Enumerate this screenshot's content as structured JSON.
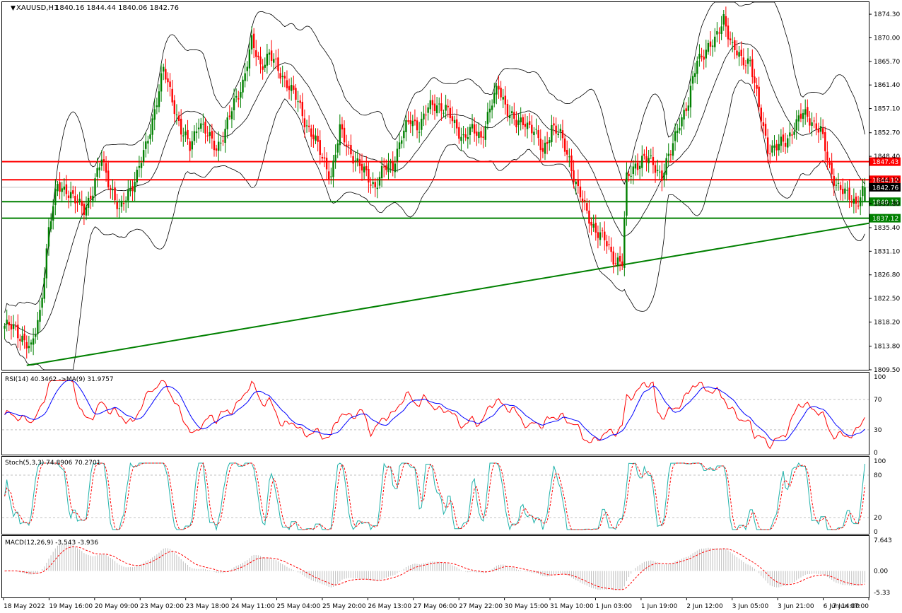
{
  "chart_data": {
    "type": "candlestick",
    "symbol_header": "XAUUSD,H1",
    "ohlc_header": "1840.16 1844.44 1840.06 1842.76",
    "price_ticks": [
      "1874.30",
      "1870.00",
      "1865.70",
      "1861.40",
      "1857.10",
      "1852.70",
      "1848.40",
      "1844.10",
      "1839.80",
      "1835.40",
      "1831.10",
      "1826.80",
      "1822.50",
      "1818.20",
      "1813.80",
      "1809.50"
    ],
    "price_range": [
      1809.5,
      1876.5
    ],
    "horizontal_levels": [
      {
        "label": "1847.43",
        "color": "#ff0000"
      },
      {
        "label": "1844.12",
        "color": "#ff0000"
      },
      {
        "label": "1840.13",
        "color": "#008000"
      },
      {
        "label": "1837.12",
        "color": "#008000"
      }
    ],
    "current_price": {
      "label": "1842.76",
      "value": 1842.76
    },
    "trendline": {
      "start": [
        "18 May 2022",
        1810.3
      ],
      "end": [
        "7 Jun 07:00",
        1836.2
      ],
      "color": "#008000"
    },
    "x_ticks": [
      "18 May 2022",
      "19 May 16:00",
      "20 May 09:00",
      "23 May 02:00",
      "23 May 18:00",
      "24 May 11:00",
      "25 May 04:00",
      "25 May 20:00",
      "26 May 13:00",
      "27 May 06:00",
      "27 May 22:00",
      "30 May 15:00",
      "31 May 10:00",
      "1 Jun 03:00",
      "1 Jun 19:00",
      "2 Jun 12:00",
      "3 Jun 05:00",
      "3 Jun 21:00",
      "6 Jun 14:00",
      "7 Jun 07:00"
    ],
    "close_anchors": [
      [
        0,
        1817.5
      ],
      [
        4,
        1817
      ],
      [
        8,
        1815.5
      ],
      [
        12,
        1813
      ],
      [
        16,
        1820
      ],
      [
        20,
        1835
      ],
      [
        24,
        1843
      ],
      [
        28,
        1842.5
      ],
      [
        32,
        1840
      ],
      [
        36,
        1839
      ],
      [
        40,
        1842
      ],
      [
        44,
        1848
      ],
      [
        48,
        1843
      ],
      [
        52,
        1838
      ],
      [
        56,
        1842
      ],
      [
        60,
        1845
      ],
      [
        64,
        1850
      ],
      [
        68,
        1857
      ],
      [
        72,
        1864
      ],
      [
        76,
        1859
      ],
      [
        80,
        1853
      ],
      [
        84,
        1850
      ],
      [
        88,
        1855
      ],
      [
        92,
        1852
      ],
      [
        96,
        1850
      ],
      [
        100,
        1853
      ],
      [
        104,
        1858
      ],
      [
        108,
        1862
      ],
      [
        112,
        1869
      ],
      [
        116,
        1865
      ],
      [
        120,
        1867
      ],
      [
        124,
        1864
      ],
      [
        128,
        1862
      ],
      [
        132,
        1859
      ],
      [
        136,
        1855
      ],
      [
        140,
        1852
      ],
      [
        144,
        1848
      ],
      [
        148,
        1845
      ],
      [
        152,
        1853
      ],
      [
        156,
        1850
      ],
      [
        160,
        1847
      ],
      [
        164,
        1845
      ],
      [
        168,
        1843
      ],
      [
        172,
        1846
      ],
      [
        176,
        1847
      ],
      [
        180,
        1852
      ],
      [
        184,
        1855
      ],
      [
        188,
        1854
      ],
      [
        192,
        1857
      ],
      [
        196,
        1858
      ],
      [
        200,
        1857
      ],
      [
        204,
        1854
      ],
      [
        208,
        1852
      ],
      [
        212,
        1853
      ],
      [
        216,
        1852
      ],
      [
        220,
        1857
      ],
      [
        224,
        1861
      ],
      [
        228,
        1857
      ],
      [
        232,
        1854
      ],
      [
        236,
        1855
      ],
      [
        240,
        1853
      ],
      [
        244,
        1849
      ],
      [
        248,
        1854
      ],
      [
        252,
        1852
      ],
      [
        256,
        1848
      ],
      [
        260,
        1842
      ],
      [
        264,
        1838
      ],
      [
        268,
        1835
      ],
      [
        272,
        1833
      ],
      [
        276,
        1830
      ],
      [
        280,
        1829
      ],
      [
        282,
        1844
      ],
      [
        286,
        1847
      ],
      [
        290,
        1848
      ],
      [
        294,
        1847
      ],
      [
        298,
        1845
      ],
      [
        302,
        1849
      ],
      [
        306,
        1855
      ],
      [
        310,
        1858
      ],
      [
        314,
        1866
      ],
      [
        318,
        1868
      ],
      [
        322,
        1869
      ],
      [
        326,
        1874
      ],
      [
        330,
        1868
      ],
      [
        334,
        1866
      ],
      [
        338,
        1866
      ],
      [
        342,
        1857
      ],
      [
        346,
        1850
      ],
      [
        350,
        1850
      ],
      [
        354,
        1851
      ],
      [
        358,
        1854
      ],
      [
        362,
        1856
      ],
      [
        366,
        1855
      ],
      [
        370,
        1853
      ],
      [
        374,
        1846
      ],
      [
        378,
        1843
      ],
      [
        382,
        1841
      ],
      [
        386,
        1840
      ],
      [
        390,
        1842.76
      ]
    ],
    "bollinger_bands": {
      "period": 20,
      "deviations": 2,
      "color": "#000000"
    },
    "rsi": {
      "label": "RSI(14) 40.3462  ->MA(9) 31.9757",
      "ticks": [
        "100",
        "70",
        "30",
        "0"
      ],
      "levels": [
        70,
        30
      ],
      "range": [
        0,
        100
      ],
      "colors": {
        "rsi": "#ff0000",
        "ma": "#0000ff"
      }
    },
    "stochastic": {
      "label": "Stoch(5,3,3) 74.8906 70.2701",
      "ticks": [
        "100",
        "80",
        "20",
        "0"
      ],
      "levels": [
        80,
        20
      ],
      "range": [
        0,
        100
      ],
      "colors": {
        "k": "#20b2aa",
        "d": "#ff0000"
      }
    },
    "macd": {
      "label": "MACD(12,26,9) -3.543 -3.936",
      "ticks": [
        "7.643",
        "0.00",
        "-5.33"
      ],
      "range": [
        -5.33,
        7.643
      ],
      "colors": {
        "histogram": "#c0c0c0",
        "signal": "#ff0000"
      }
    },
    "colors": {
      "bull": "#008000",
      "bear": "#ff0000",
      "level_red": "#ff0000",
      "level_green": "#008000",
      "tag_text": "#ffffff",
      "grid": "#c0c0c0"
    }
  }
}
